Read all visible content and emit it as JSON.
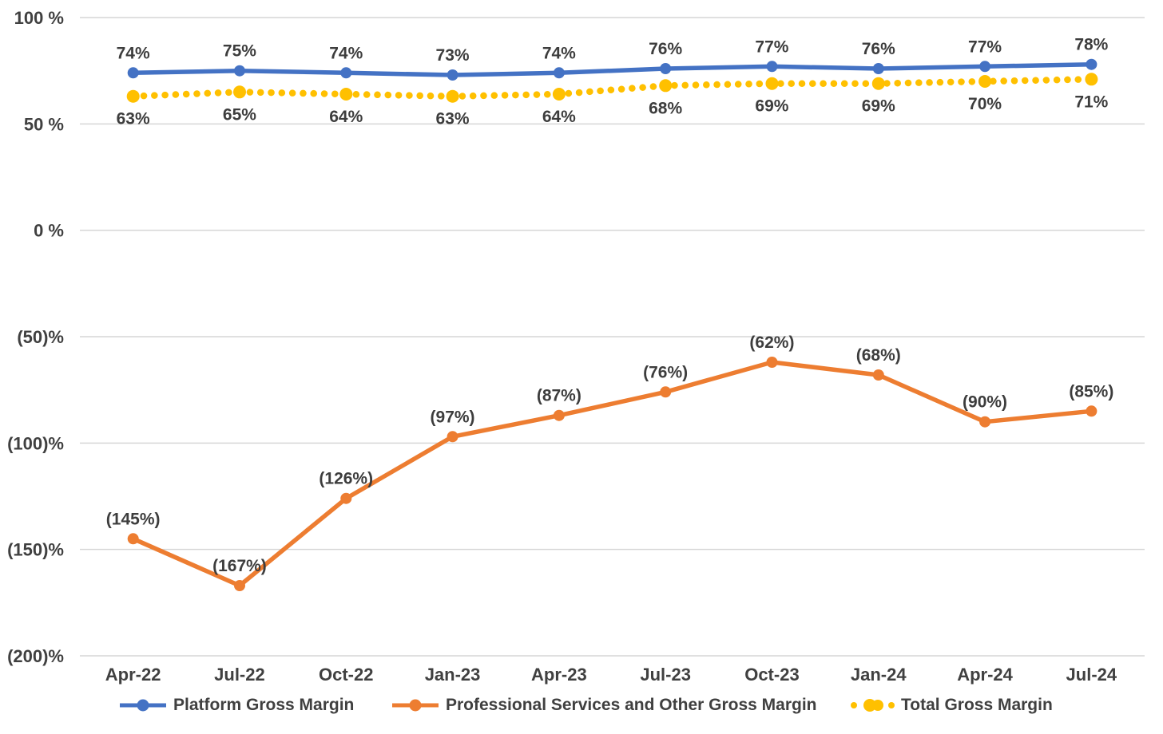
{
  "chart_data": {
    "type": "line",
    "title": "",
    "xlabel": "",
    "ylabel": "",
    "categories": [
      "Apr-22",
      "Jul-22",
      "Oct-22",
      "Jan-23",
      "Apr-23",
      "Jul-23",
      "Oct-23",
      "Jan-24",
      "Apr-24",
      "Jul-24"
    ],
    "series": [
      {
        "name": "Platform Gross Margin",
        "color": "#4472C4",
        "line_style": "solid",
        "label_position": "above",
        "values": [
          74,
          75,
          74,
          73,
          74,
          76,
          77,
          76,
          77,
          78
        ],
        "labels": [
          "74%",
          "75%",
          "74%",
          "73%",
          "74%",
          "76%",
          "77%",
          "76%",
          "77%",
          "78%"
        ]
      },
      {
        "name": "Professional Services and Other Gross Margin",
        "color": "#ED7D31",
        "line_style": "solid",
        "label_position": "above",
        "values": [
          -145,
          -167,
          -126,
          -97,
          -87,
          -76,
          -62,
          -68,
          -90,
          -85
        ],
        "labels": [
          "(145%)",
          "(167%)",
          "(126%)",
          "(97%)",
          "(87%)",
          "(76%)",
          "(62%)",
          "(68%)",
          "(90%)",
          "(85%)"
        ]
      },
      {
        "name": "Total Gross Margin",
        "color": "#FFC000",
        "line_style": "dotted",
        "label_position": "below",
        "values": [
          63,
          65,
          64,
          63,
          64,
          68,
          69,
          69,
          70,
          71
        ],
        "labels": [
          "63%",
          "65%",
          "64%",
          "63%",
          "64%",
          "68%",
          "69%",
          "69%",
          "70%",
          "71%"
        ]
      }
    ],
    "y_axis": {
      "min": -200,
      "max": 100,
      "ticks": [
        {
          "value": 100,
          "label": "100 %"
        },
        {
          "value": 50,
          "label": "50 %"
        },
        {
          "value": 0,
          "label": "0 %"
        },
        {
          "value": -50,
          "label": "(50)%"
        },
        {
          "value": -100,
          "label": "(100)%"
        },
        {
          "value": -150,
          "label": "(150)%"
        },
        {
          "value": -200,
          "label": "(200)%"
        }
      ]
    },
    "grid": true,
    "legend_position": "bottom",
    "colors": {
      "gridline": "#D6D6D6",
      "axis_text": "#404040",
      "data_label_text": "#3D3D3D",
      "background": "#FFFFFF"
    }
  }
}
